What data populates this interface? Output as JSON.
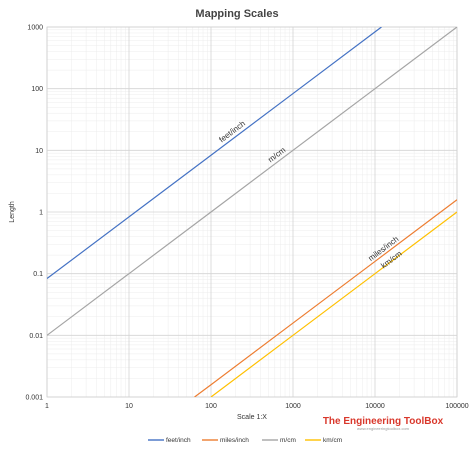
{
  "chart_data": {
    "type": "line",
    "title": "Mapping Scales",
    "xlabel": "Scale 1:X",
    "ylabel": "Length",
    "xscale": "log",
    "yscale": "log",
    "xlim": [
      1,
      100000
    ],
    "ylim": [
      0.001,
      1000
    ],
    "x_ticks": [
      "1",
      "10",
      "100",
      "1000",
      "10000",
      "100000"
    ],
    "y_ticks": [
      "0.001",
      "0.01",
      "0.1",
      "1",
      "10",
      "100",
      "1000"
    ],
    "grid": true,
    "legend_position": "bottom",
    "series": [
      {
        "name": "feet/inch",
        "color": "#4472c4",
        "label": "feet/inch",
        "x": [
          1,
          10,
          100,
          1000,
          10000,
          12000
        ],
        "y": [
          0.0833,
          0.833,
          8.33,
          83.3,
          833,
          1000
        ]
      },
      {
        "name": "miles/inch",
        "color": "#ed7d31",
        "label": "miles/inch",
        "x": [
          63,
          100,
          1000,
          10000,
          100000
        ],
        "y": [
          0.001,
          0.00158,
          0.0158,
          0.158,
          1.58
        ]
      },
      {
        "name": "m/cm",
        "color": "#a5a5a5",
        "label": "m/cm",
        "x": [
          1,
          10,
          100,
          1000,
          10000,
          100000
        ],
        "y": [
          0.01,
          0.1,
          1,
          10,
          100,
          1000
        ]
      },
      {
        "name": "km/cm",
        "color": "#ffc000",
        "label": "km/cm",
        "x": [
          100,
          1000,
          10000,
          100000
        ],
        "y": [
          0.001,
          0.01,
          0.1,
          1
        ]
      }
    ]
  },
  "watermark": {
    "brand": "The Engineering ToolBox",
    "url": "www.engineeringtoolbox.com"
  }
}
